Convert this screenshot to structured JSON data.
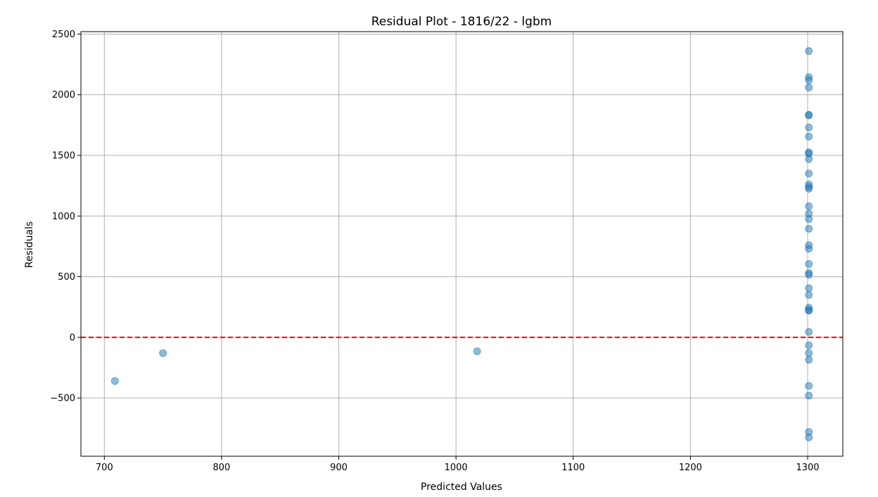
{
  "chart_data": {
    "type": "scatter",
    "title": "Residual Plot - 1816/22 - lgbm",
    "xlabel": "Predicted Values",
    "ylabel": "Residuals",
    "xlim": [
      680,
      1330
    ],
    "ylim": [
      -980,
      2520
    ],
    "xticks": [
      700,
      800,
      900,
      1000,
      1100,
      1200,
      1300
    ],
    "yticks": [
      -500,
      0,
      500,
      1000,
      1500,
      2000,
      2500
    ],
    "ytick_labels": [
      "−500",
      "0",
      "500",
      "1000",
      "1500",
      "2000",
      "2500"
    ],
    "grid": true,
    "point_color": "#1f77b4",
    "reference_line": {
      "y": 0,
      "color": "#ff0000",
      "style": "dashed"
    },
    "points": [
      {
        "x": 709,
        "y": -360
      },
      {
        "x": 750,
        "y": -130
      },
      {
        "x": 1018,
        "y": -115
      },
      {
        "x": 1301,
        "y": 2360
      },
      {
        "x": 1301,
        "y": 2145
      },
      {
        "x": 1301,
        "y": 2120
      },
      {
        "x": 1301,
        "y": 2060
      },
      {
        "x": 1301,
        "y": 1835
      },
      {
        "x": 1301,
        "y": 1830
      },
      {
        "x": 1301,
        "y": 1730
      },
      {
        "x": 1301,
        "y": 1655
      },
      {
        "x": 1301,
        "y": 1525
      },
      {
        "x": 1301,
        "y": 1515
      },
      {
        "x": 1301,
        "y": 1470
      },
      {
        "x": 1301,
        "y": 1350
      },
      {
        "x": 1301,
        "y": 1260
      },
      {
        "x": 1301,
        "y": 1240
      },
      {
        "x": 1301,
        "y": 1225
      },
      {
        "x": 1301,
        "y": 1080
      },
      {
        "x": 1301,
        "y": 1020
      },
      {
        "x": 1301,
        "y": 975
      },
      {
        "x": 1301,
        "y": 895
      },
      {
        "x": 1301,
        "y": 760
      },
      {
        "x": 1301,
        "y": 730
      },
      {
        "x": 1301,
        "y": 605
      },
      {
        "x": 1301,
        "y": 530
      },
      {
        "x": 1301,
        "y": 515
      },
      {
        "x": 1301,
        "y": 405
      },
      {
        "x": 1301,
        "y": 350
      },
      {
        "x": 1301,
        "y": 245
      },
      {
        "x": 1301,
        "y": 225
      },
      {
        "x": 1301,
        "y": 220
      },
      {
        "x": 1301,
        "y": 45
      },
      {
        "x": 1301,
        "y": -65
      },
      {
        "x": 1301,
        "y": -130
      },
      {
        "x": 1301,
        "y": -185
      },
      {
        "x": 1301,
        "y": -400
      },
      {
        "x": 1301,
        "y": -480
      },
      {
        "x": 1301,
        "y": -780
      },
      {
        "x": 1301,
        "y": -825
      }
    ]
  }
}
